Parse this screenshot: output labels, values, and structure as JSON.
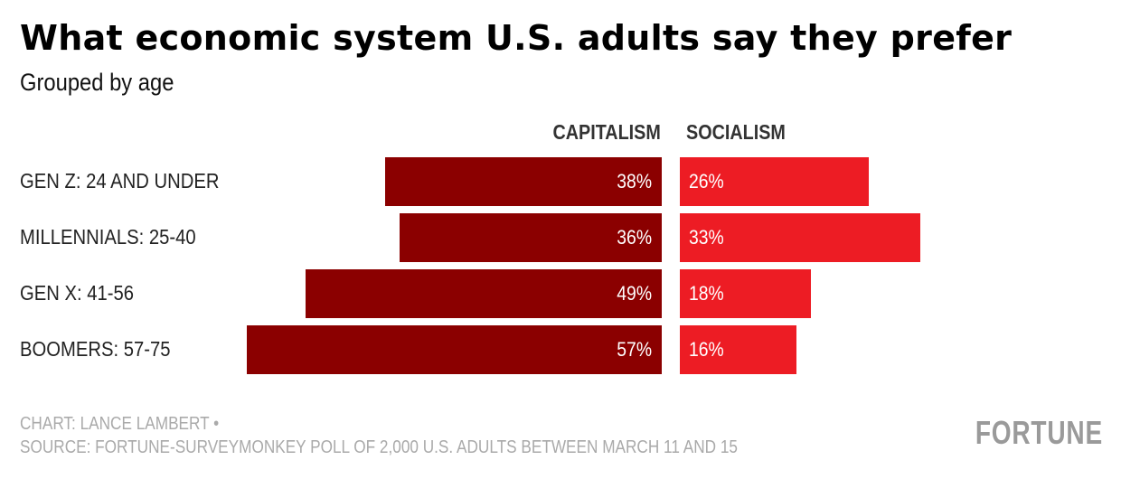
{
  "chart_data": {
    "type": "bar",
    "orientation": "horizontal-diverging",
    "title": "What economic system U.S. adults say they prefer",
    "subtitle": "Grouped by age",
    "categories": [
      "GEN Z: 24 AND UNDER",
      "MILLENNIALS: 25-40",
      "GEN X: 41-56",
      "BOOMERS: 57-75"
    ],
    "series": [
      {
        "name": "CAPITALISM",
        "values": [
          38,
          36,
          49,
          57
        ],
        "labels": [
          "38%",
          "36%",
          "49%",
          "57%"
        ],
        "color": "#8b0000"
      },
      {
        "name": "SOCIALISM",
        "values": [
          26,
          33,
          18,
          16
        ],
        "labels": [
          "26%",
          "33%",
          "18%",
          "16%"
        ],
        "color": "#ed1c24"
      }
    ],
    "unit": "%",
    "grid": false
  },
  "footer": {
    "credit": "CHART: LANCE LAMBERT •",
    "source": "SOURCE: FORTUNE-SURVEYMONKEY POLL OF 2,000 U.S. ADULTS BETWEEN MARCH 11 AND 15"
  },
  "brand": {
    "logo_text": "FORTUNE"
  }
}
